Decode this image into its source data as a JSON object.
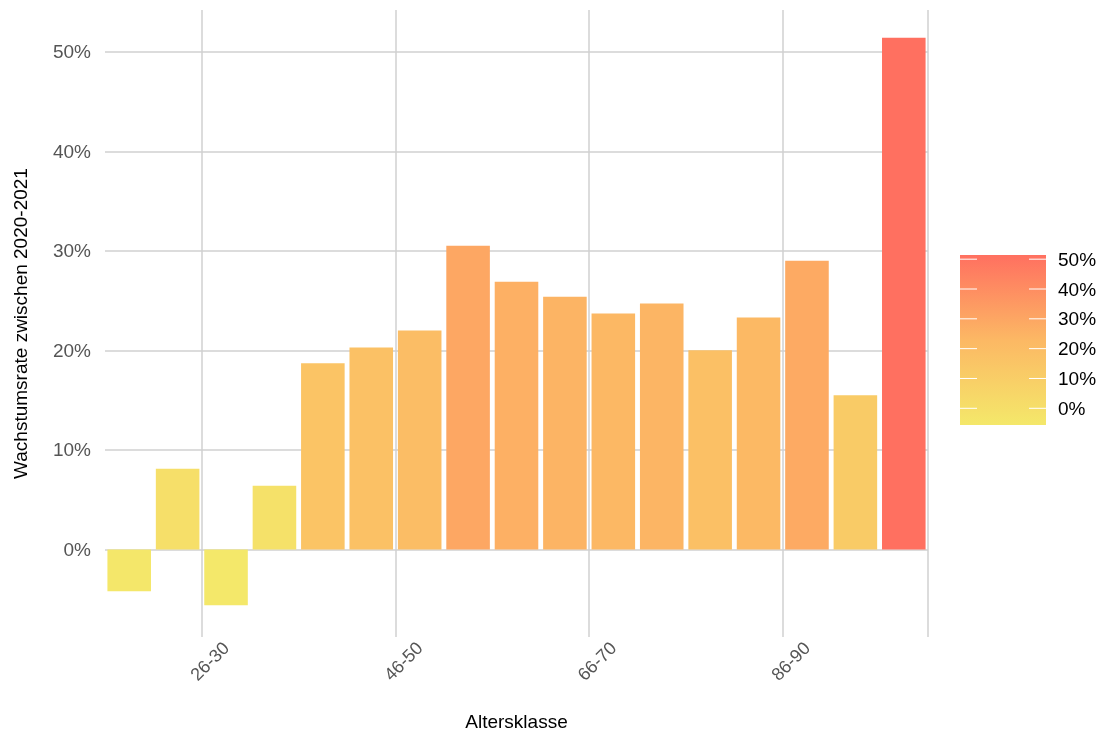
{
  "chart_data": {
    "type": "bar",
    "xlabel": "Altersklasse",
    "ylabel": "Wachstumsrate zwischen 2020-2021",
    "categories": [
      null,
      null,
      "26-30",
      null,
      null,
      null,
      "46-50",
      null,
      null,
      null,
      "66-70",
      null,
      null,
      null,
      "86-90",
      null,
      null
    ],
    "values": [
      -4.2,
      8.1,
      -5.6,
      6.4,
      18.7,
      20.3,
      22.0,
      30.5,
      26.9,
      25.4,
      23.7,
      24.7,
      20.0,
      23.3,
      29.0,
      15.5,
      51.4
    ],
    "colors": [
      "#f4e76a",
      "#f6df69",
      "#f4e86a",
      "#f5e169",
      "#fbc465",
      "#fbc165",
      "#fbbd65",
      "#fda763",
      "#fdb064",
      "#fcb464",
      "#fcb864",
      "#fcb564",
      "#fbc065",
      "#fcb964",
      "#fdaa63",
      "#f9cb66",
      "#ff7060"
    ],
    "ylim": [
      -8.8,
      54.2
    ],
    "yticks": [
      {
        "value": 0,
        "label": "0%"
      },
      {
        "value": 10,
        "label": "10%"
      },
      {
        "value": 20,
        "label": "20%"
      },
      {
        "value": 30,
        "label": "30%"
      },
      {
        "value": 40,
        "label": "40%"
      },
      {
        "value": 50,
        "label": "50%"
      }
    ],
    "clim": [
      -5.6,
      51.4
    ],
    "cticks": [
      {
        "value": 0,
        "label": "0%"
      },
      {
        "value": 10,
        "label": "10%"
      },
      {
        "value": 20,
        "label": "20%"
      },
      {
        "value": 30,
        "label": "30%"
      },
      {
        "value": 40,
        "label": "40%"
      },
      {
        "value": 50,
        "label": "50%"
      }
    ],
    "grid": true
  }
}
